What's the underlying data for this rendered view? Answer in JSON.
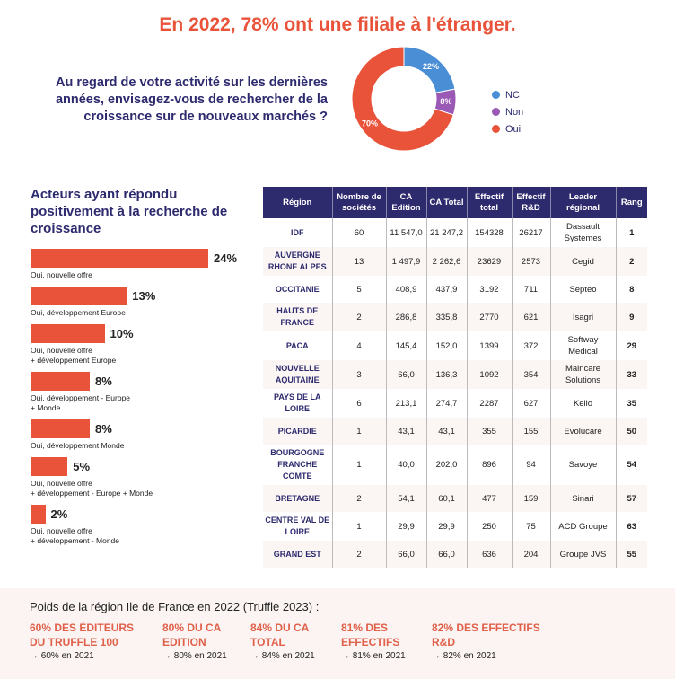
{
  "title": "En 2022, 78% ont une filiale à l'étranger.",
  "question": "Au regard de votre activité sur les dernières années, envisagez-vous de rechercher de la croissance sur de nouveaux marchés ?",
  "chart_data": [
    {
      "type": "pie",
      "donut": true,
      "categories": [
        "NC",
        "Non",
        "Oui"
      ],
      "values": [
        22,
        8,
        70
      ],
      "labels": [
        "22%",
        "8%",
        "70%"
      ],
      "colors": [
        "#4a8fd6",
        "#9b59b6",
        "#e8533a"
      ],
      "legend": "right"
    },
    {
      "type": "bar",
      "orientation": "horizontal",
      "title": "Acteurs ayant répondu positivement à la recherche de croissance",
      "categories": [
        "Oui, nouvelle offre",
        "Oui, développement Europe",
        "Oui, nouvelle offre\n+ développement Europe",
        "Oui, développement - Europe\n+ Monde",
        "Oui, développement Monde",
        "Oui, nouvelle offre\n+ développement - Europe + Monde",
        "Oui, nouvelle offre\n+ développement - Monde"
      ],
      "values": [
        24,
        13,
        10,
        8,
        8,
        5,
        2
      ],
      "labels": [
        "24%",
        "13%",
        "10%",
        "8%",
        "8%",
        "5%",
        "2%"
      ],
      "color": "#e8533a"
    }
  ],
  "table": {
    "headers": [
      "Région",
      "Nombre de sociétés",
      "CA Edition",
      "CA Total",
      "Effectif total",
      "Effectif R&D",
      "Leader régional",
      "Rang"
    ],
    "rows": [
      [
        "IDF",
        "60",
        "11 547,0",
        "21 247,2",
        "154328",
        "26217",
        "Dassault Systemes",
        "1"
      ],
      [
        "AUVERGNE RHONE ALPES",
        "13",
        "1 497,9",
        "2 262,6",
        "23629",
        "2573",
        "Cegid",
        "2"
      ],
      [
        "OCCITANIE",
        "5",
        "408,9",
        "437,9",
        "3192",
        "711",
        "Septeo",
        "8"
      ],
      [
        "HAUTS DE FRANCE",
        "2",
        "286,8",
        "335,8",
        "2770",
        "621",
        "Isagri",
        "9"
      ],
      [
        "PACA",
        "4",
        "145,4",
        "152,0",
        "1399",
        "372",
        "Softway Medical",
        "29"
      ],
      [
        "NOUVELLE AQUITAINE",
        "3",
        "66,0",
        "136,3",
        "1092",
        "354",
        "Maincare Solutions",
        "33"
      ],
      [
        "PAYS DE LA LOIRE",
        "6",
        "213,1",
        "274,7",
        "2287",
        "627",
        "Kelio",
        "35"
      ],
      [
        "PICARDIE",
        "1",
        "43,1",
        "43,1",
        "355",
        "155",
        "Evolucare",
        "50"
      ],
      [
        "BOURGOGNE FRANCHE COMTE",
        "1",
        "40,0",
        "202,0",
        "896",
        "94",
        "Savoye",
        "54"
      ],
      [
        "BRETAGNE",
        "2",
        "54,1",
        "60,1",
        "477",
        "159",
        "Sinari",
        "57"
      ],
      [
        "CENTRE VAL DE LOIRE",
        "1",
        "29,9",
        "29,9",
        "250",
        "75",
        "ACD Groupe",
        "63"
      ],
      [
        "GRAND EST",
        "2",
        "66,0",
        "66,0",
        "636",
        "204",
        "Groupe JVS",
        "55"
      ]
    ]
  },
  "bottom": {
    "title": "Poids de la région Ile de France en 2022 (Truffle 2023) :",
    "stats": [
      {
        "big": "60% DES ÉDITEURS\nDU TRUFFLE 100",
        "small": "→ 60% en 2021"
      },
      {
        "big": "80% DU CA\nEDITION",
        "small": "→ 80% en 2021"
      },
      {
        "big": "84% DU CA\nTOTAL",
        "small": "→ 84% en 2021"
      },
      {
        "big": "81% DES\nEFFECTIFS",
        "small": "→ 81% en 2021"
      },
      {
        "big": "82% DES EFFECTIFS\nR&D",
        "small": "→ 82% en 2021"
      }
    ]
  }
}
